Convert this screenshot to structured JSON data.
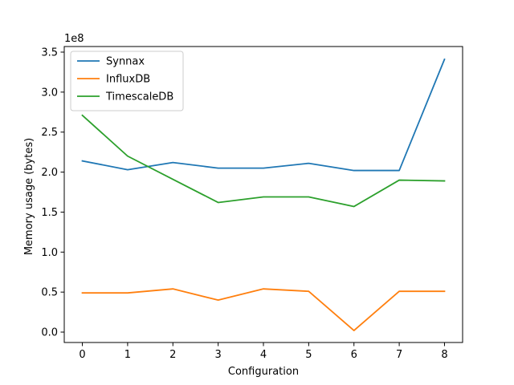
{
  "chart_data": {
    "type": "line",
    "xlabel": "Configuration",
    "ylabel": "Memory usage (bytes)",
    "y_offset_label": "1e8",
    "x": [
      0,
      1,
      2,
      3,
      4,
      5,
      6,
      7,
      8
    ],
    "xlim": [
      -0.4,
      8.4
    ],
    "ylim": [
      -13000000.0,
      357000000.0
    ],
    "x_ticks": [
      0,
      1,
      2,
      3,
      4,
      5,
      6,
      7,
      8
    ],
    "y_ticks": [
      0,
      50000000.0,
      100000000.0,
      150000000.0,
      200000000.0,
      250000000.0,
      300000000.0,
      350000000.0
    ],
    "y_tick_labels": [
      "0.0",
      "0.5",
      "1.0",
      "1.5",
      "2.0",
      "2.5",
      "3.0",
      "3.5"
    ],
    "grid": false,
    "legend_position": "top-left",
    "series": [
      {
        "name": "Synnax",
        "color": "#1f77b4",
        "values": [
          214000000.0,
          203000000.0,
          212000000.0,
          205000000.0,
          205000000.0,
          211000000.0,
          202000000.0,
          202000000.0,
          341000000.0
        ]
      },
      {
        "name": "InfluxDB",
        "color": "#ff7f0e",
        "values": [
          49000000.0,
          49000000.0,
          54000000.0,
          40000000.0,
          54000000.0,
          51000000.0,
          2000000.0,
          51000000.0,
          51000000.0
        ]
      },
      {
        "name": "TimescaleDB",
        "color": "#2ca02c",
        "values": [
          271000000.0,
          220000000.0,
          191000000.0,
          162000000.0,
          169000000.0,
          169000000.0,
          157000000.0,
          190000000.0,
          189000000.0
        ]
      }
    ]
  }
}
